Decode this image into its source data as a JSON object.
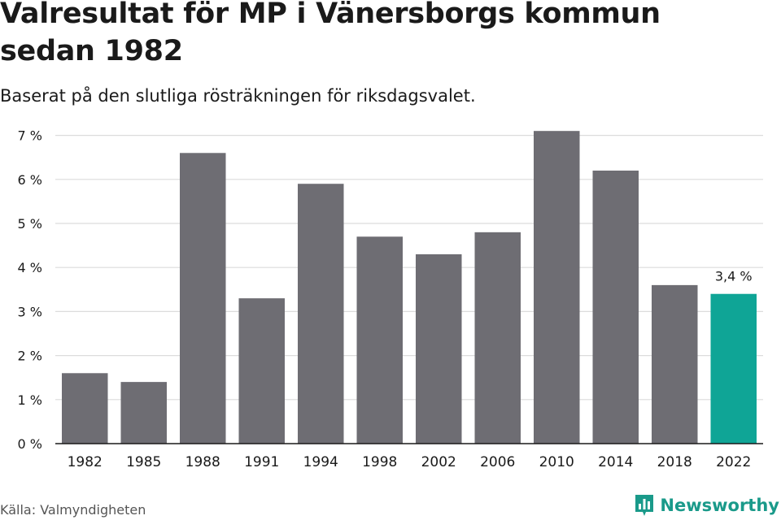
{
  "title": "Valresultat för MP i Vänersborgs kommun sedan 1982",
  "subtitle": "Baserat på den slutliga rösträkningen för riksdagsvalet.",
  "source": "Källa: Valmyndigheten",
  "brand": {
    "name": "Newsworthy",
    "icon": "newsworthy-bar-chart-icon"
  },
  "colors": {
    "bar": "#6e6d73",
    "highlight": "#0fa596",
    "grid": "#dcdcdc",
    "axis": "#1a1a1a"
  },
  "chart_data": {
    "type": "bar",
    "categories": [
      "1982",
      "1985",
      "1988",
      "1991",
      "1994",
      "1998",
      "2002",
      "2006",
      "2010",
      "2014",
      "2018",
      "2022"
    ],
    "values": [
      1.6,
      1.4,
      6.6,
      3.3,
      5.9,
      4.7,
      4.3,
      4.8,
      7.1,
      6.2,
      3.6,
      3.4
    ],
    "highlight_index": 11,
    "data_labels": [
      {
        "category": "2022",
        "text": "3,4 %"
      }
    ],
    "yticks": [
      "0 %",
      "1 %",
      "2 %",
      "3 %",
      "4 %",
      "5 %",
      "6 %",
      "7 %"
    ],
    "ylim": [
      0,
      7.2
    ],
    "grid": true
  }
}
